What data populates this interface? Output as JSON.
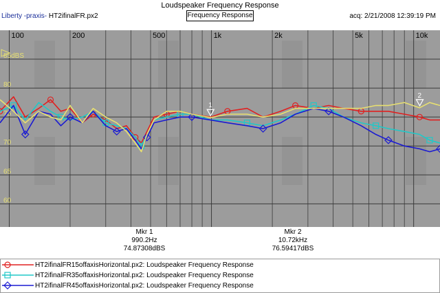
{
  "window": {
    "title": "Loudspeaker Frequency Response"
  },
  "header": {
    "brand": "Liberty -praxis-",
    "file": "HT2ifinalFR.px2",
    "view_button": "Frequency Response",
    "acquired": "acq: 2/21/2008 12:39:19 PM"
  },
  "axis": {
    "x_ticks": [
      "100",
      "200",
      "500",
      "1k",
      "2k",
      "5k",
      "10k"
    ],
    "y_ticks": [
      "85dBS",
      "80",
      "75",
      "70",
      "65",
      "60"
    ]
  },
  "markers": [
    {
      "label": "Mkr 1",
      "freq": "990.2Hz",
      "level": "74.87308dBS",
      "flag": "1"
    },
    {
      "label": "Mkr 2",
      "freq": "10.72kHz",
      "level": "76.59417dBS",
      "flag": "2"
    }
  ],
  "legend": [
    {
      "name": "HT2ifinalFR15offaxisHorizontal.px2:  Loudspeaker Frequency Response",
      "color": "#e02020",
      "symbol": "circle"
    },
    {
      "name": "HT2ifinalFR35offaxisHorizontal.px2:  Loudspeaker Frequency Response",
      "color": "#20c8c8",
      "symbol": "square"
    },
    {
      "name": "HT2ifinalFR45offaxisHorizontal.px2:  Loudspeaker Frequency Response",
      "color": "#1a1ad2",
      "symbol": "diamond"
    }
  ],
  "chart_data": {
    "type": "line",
    "xlabel": "",
    "ylabel": "",
    "xscale": "log",
    "xlim": [
      90,
      13500
    ],
    "ylim": [
      56,
      90
    ],
    "grid": true,
    "legend_position": "bottom",
    "series": [
      {
        "name": "HT2ifinalFR15offaxisHorizontal.px2:  Loudspeaker Frequency Response",
        "color": "#e02020",
        "x": [
          90,
          105,
          120,
          140,
          160,
          180,
          200,
          230,
          260,
          300,
          340,
          380,
          420,
          450,
          480,
          520,
          600,
          700,
          800,
          990,
          1200,
          1500,
          1800,
          2200,
          2600,
          3200,
          3800,
          4500,
          5500,
          6500,
          7500,
          9000,
          10700,
          12000,
          13500
        ],
        "y": [
          76,
          78.5,
          75,
          76.5,
          78,
          76,
          76.5,
          74,
          75.5,
          74.5,
          73,
          73.5,
          71.5,
          70.5,
          72.5,
          75,
          75.5,
          76,
          75.5,
          75,
          76,
          76.5,
          75,
          76,
          77,
          76.5,
          77,
          76.5,
          76,
          76,
          76,
          75.5,
          75,
          74.5,
          74.5
        ]
      },
      {
        "name": "HT2ifinalFR35offaxisHorizontal.px2:  Loudspeaker Frequency Response",
        "color": "#20c8c8",
        "x": [
          90,
          105,
          120,
          140,
          160,
          180,
          200,
          230,
          260,
          300,
          340,
          380,
          420,
          450,
          480,
          520,
          600,
          700,
          800,
          990,
          1200,
          1500,
          1800,
          2200,
          2600,
          3200,
          3800,
          4500,
          5500,
          6500,
          7500,
          9000,
          10700,
          12000,
          13500
        ],
        "y": [
          76,
          77,
          74.5,
          77.5,
          76,
          75,
          74.5,
          75,
          76,
          74,
          73.5,
          73,
          71.5,
          70,
          72,
          74.5,
          75,
          75.5,
          75.5,
          74.5,
          74.5,
          74,
          73.5,
          74.5,
          75.5,
          77,
          76.5,
          75,
          74,
          73.5,
          73,
          72.5,
          72,
          71,
          70.5
        ]
      },
      {
        "name": "HT2ifinalFR45offaxisHorizontal.px2:  Loudspeaker Frequency Response",
        "color": "#1a1ad2",
        "x": [
          90,
          105,
          120,
          140,
          160,
          180,
          200,
          230,
          260,
          300,
          340,
          380,
          420,
          450,
          480,
          520,
          600,
          700,
          800,
          990,
          1200,
          1500,
          1800,
          2200,
          2600,
          3200,
          3800,
          4500,
          5500,
          6500,
          7500,
          9000,
          10700,
          12000,
          13500
        ],
        "y": [
          74,
          77,
          72,
          76,
          75.5,
          73.5,
          75,
          74,
          76,
          73.5,
          72.5,
          73,
          71,
          69.5,
          71.5,
          74,
          74.5,
          75,
          75,
          74.5,
          74,
          73.5,
          73,
          74,
          75.5,
          76.5,
          76,
          75,
          73.5,
          72,
          71,
          70,
          69.5,
          69,
          69.5
        ]
      },
      {
        "name": "",
        "color": "#e8e070",
        "x": [
          90,
          105,
          120,
          140,
          160,
          180,
          200,
          230,
          260,
          300,
          340,
          380,
          420,
          450,
          480,
          520,
          600,
          700,
          800,
          990,
          1200,
          1500,
          1800,
          2200,
          2600,
          3200,
          3800,
          4500,
          5500,
          6500,
          7500,
          9000,
          10700,
          12000,
          13500
        ],
        "y": [
          78,
          76,
          74,
          76,
          75,
          74.5,
          77,
          74,
          76.5,
          75,
          74,
          72.5,
          70.5,
          69,
          72,
          74.5,
          76,
          76,
          75.5,
          74.9,
          75.5,
          75.5,
          75,
          75.5,
          76.5,
          76.5,
          76.5,
          76.5,
          76.5,
          77,
          77,
          77.5,
          76.6,
          77.5,
          77
        ]
      }
    ]
  }
}
